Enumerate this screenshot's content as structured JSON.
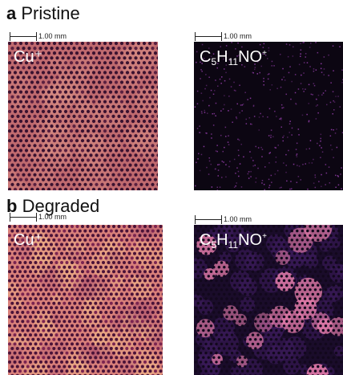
{
  "panels": [
    {
      "letter": "a",
      "title": "Pristine",
      "scalebar_label": "1.00 mm",
      "images": [
        {
          "ion": "Cu⁺",
          "colormap": "copper-magma"
        },
        {
          "ion_formula": {
            "c": "C",
            "c_sub": "5",
            "h": "H",
            "h_sub": "11",
            "rest": "NO",
            "charge": "+"
          },
          "colormap": "magma-dark"
        }
      ]
    },
    {
      "letter": "b",
      "title": "Degraded",
      "scalebar_label": "1.00 mm",
      "images": [
        {
          "ion": "Cu⁺",
          "colormap": "copper-magma"
        },
        {
          "ion_formula": {
            "c": "C",
            "c_sub": "5",
            "h": "H",
            "h_sub": "11",
            "rest": "NO",
            "charge": "+"
          },
          "colormap": "magma-dark"
        }
      ]
    }
  ],
  "colors": {
    "pristine_cu_bg": "#c06a6f",
    "pristine_cu_dot": "#3a1230",
    "degraded_cu_bg": "#d9807a",
    "degraded_cu_dot": "#4a1238",
    "ion_dark_bg": "#0c0612",
    "ion_speckle": "#8a3aa0",
    "ion_blob": "#e07aa8"
  }
}
